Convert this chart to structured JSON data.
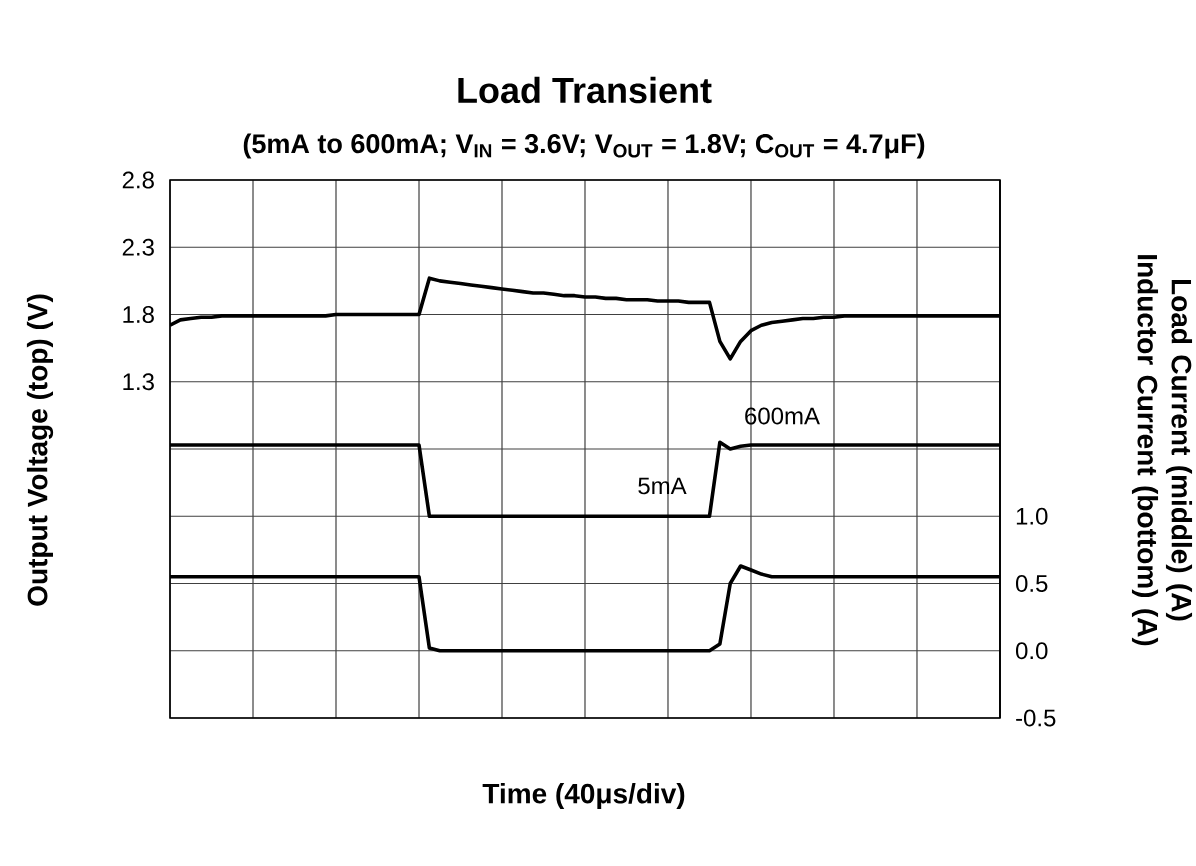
{
  "chart_data": {
    "type": "line",
    "title": "Load Transient",
    "subtitle": "(5mA to 600mA; V$_{IN}$ = 3.6V; V$_{OUT}$ = 1.8V; C$_{OUT}$ = 4.7μF)",
    "xlabel": "Time (40μs/div)",
    "ylabel": "Output Voltage (top) (V)",
    "y2label": "Load Current (middle) (A) Inductor Current (bottom) (A)",
    "categories": [
      null,
      null,
      null,
      null,
      null,
      null,
      null,
      null,
      null,
      null,
      null,
      null,
      null,
      null,
      null,
      null,
      null,
      null,
      null,
      null,
      null,
      null,
      null,
      null,
      null,
      null,
      null,
      null,
      null,
      null,
      null,
      null,
      null,
      null,
      null,
      null,
      null,
      null,
      null,
      null,
      null,
      null,
      null,
      null,
      null,
      null,
      null,
      null,
      null,
      null,
      null,
      null,
      null,
      null,
      null,
      null,
      null,
      null,
      null,
      null,
      null,
      null,
      null,
      null,
      null,
      null,
      null,
      null,
      null,
      null,
      null,
      null,
      null,
      null,
      null,
      null,
      null,
      null,
      null,
      null,
      null
    ],
    "ylim": [
      -1.2,
      2.8
    ],
    "yticks": [
      {
        "value": -1.2,
        "label": null
      },
      {
        "value": -0.7,
        "label": null
      },
      {
        "value": -0.2,
        "label": null
      },
      {
        "value": 0.3,
        "label": null
      },
      {
        "value": 0.8,
        "label": null
      },
      1.3,
      1.8,
      2.3,
      2.8
    ],
    "y2lim": [
      -0.5,
      3.5
    ],
    "y2ticks": [
      -0.5,
      {
        "value": 0,
        "label": "0.0"
      },
      {
        "value": 0.5,
        "label": "0.5"
      },
      {
        "value": 1,
        "label": "1.0"
      }
    ],
    "grid": true,
    "tick_labels": "y",
    "marker": "none",
    "line_style": "solid",
    "series": [
      {
        "color": "#000000",
        "values": [
          1.72,
          1.76,
          1.77,
          1.78,
          1.78,
          1.79,
          1.79,
          1.79,
          1.79,
          1.79,
          1.79,
          1.79,
          1.79,
          1.79,
          1.79,
          1.79,
          1.8,
          1.8,
          1.8,
          1.8,
          1.8,
          1.8,
          1.8,
          1.8,
          1.8,
          2.07,
          2.05,
          2.04,
          2.03,
          2.02,
          2.01,
          2.0,
          1.99,
          1.98,
          1.97,
          1.96,
          1.96,
          1.95,
          1.94,
          1.94,
          1.93,
          1.93,
          1.92,
          1.92,
          1.91,
          1.91,
          1.91,
          1.9,
          1.9,
          1.9,
          1.89,
          1.89,
          1.89,
          1.6,
          1.47,
          1.6,
          1.68,
          1.72,
          1.74,
          1.75,
          1.76,
          1.77,
          1.77,
          1.78,
          1.78,
          1.79,
          1.79,
          1.79,
          1.79,
          1.79,
          1.79,
          1.79,
          1.79,
          1.79,
          1.79,
          1.79,
          1.79,
          1.79,
          1.79,
          1.79,
          1.79
        ]
      },
      {
        "color": "#000000",
        "axis": "y2",
        "values": [
          1.53,
          1.53,
          1.53,
          1.53,
          1.53,
          1.53,
          1.53,
          1.53,
          1.53,
          1.53,
          1.53,
          1.53,
          1.53,
          1.53,
          1.53,
          1.53,
          1.53,
          1.53,
          1.53,
          1.53,
          1.53,
          1.53,
          1.53,
          1.53,
          1.53,
          1.0,
          1.0,
          1.0,
          1.0,
          1.0,
          1.0,
          1.0,
          1.0,
          1.0,
          1.0,
          1.0,
          1.0,
          1.0,
          1.0,
          1.0,
          1.0,
          1.0,
          1.0,
          1.0,
          1.0,
          1.0,
          1.0,
          1.0,
          1.0,
          1.0,
          1.0,
          1.0,
          1.0,
          1.55,
          1.5,
          1.52,
          1.53,
          1.53,
          1.53,
          1.53,
          1.53,
          1.53,
          1.53,
          1.53,
          1.53,
          1.53,
          1.53,
          1.53,
          1.53,
          1.53,
          1.53,
          1.53,
          1.53,
          1.53,
          1.53,
          1.53,
          1.53,
          1.53,
          1.53,
          1.53,
          1.53
        ]
      },
      {
        "color": "#000000",
        "axis": "y2",
        "values": [
          0.55,
          0.55,
          0.55,
          0.55,
          0.55,
          0.55,
          0.55,
          0.55,
          0.55,
          0.55,
          0.55,
          0.55,
          0.55,
          0.55,
          0.55,
          0.55,
          0.55,
          0.55,
          0.55,
          0.55,
          0.55,
          0.55,
          0.55,
          0.55,
          0.55,
          0.02,
          0.0,
          0.0,
          0.0,
          0.0,
          0.0,
          0.0,
          0.0,
          0.0,
          0.0,
          0.0,
          0.0,
          0.0,
          0.0,
          0.0,
          0.0,
          0.0,
          0.0,
          0.0,
          0.0,
          0.0,
          0.0,
          0.0,
          0.0,
          0.0,
          0.0,
          0.0,
          0.0,
          0.05,
          0.5,
          0.63,
          0.6,
          0.57,
          0.55,
          0.55,
          0.55,
          0.55,
          0.55,
          0.55,
          0.55,
          0.55,
          0.55,
          0.55,
          0.55,
          0.55,
          0.55,
          0.55,
          0.55,
          0.55,
          0.55,
          0.55,
          0.55,
          0.55,
          0.55,
          0.55,
          0.55
        ]
      }
    ],
    "annotations": [
      "600mA",
      "5mA"
    ]
  }
}
